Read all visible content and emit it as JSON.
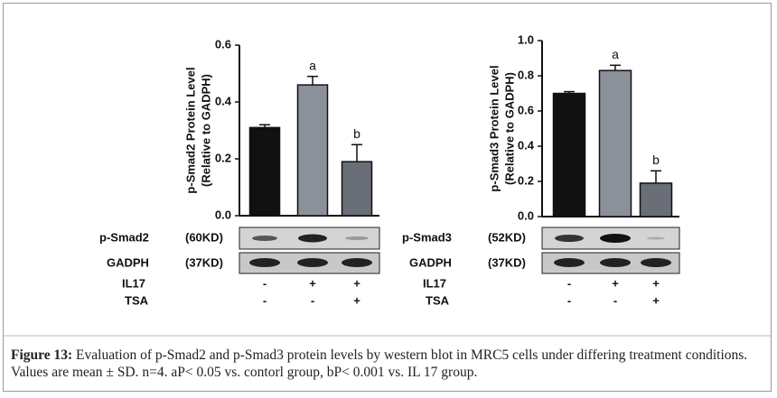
{
  "chart_data": [
    {
      "type": "bar",
      "ylabel": [
        "p-Smad2 Protein Level",
        "(Relative to GADPH)"
      ],
      "values": [
        0.31,
        0.46,
        0.19
      ],
      "errors": [
        0.01,
        0.03,
        0.06
      ],
      "colors": [
        "#111111",
        "#8c9099",
        "#6a6e77"
      ],
      "bar_labels": [
        null,
        "a",
        "b"
      ],
      "ylim": [
        0,
        0.6
      ],
      "yticks": [
        {
          "value": 0,
          "label": "0.0"
        },
        0.2,
        0.4,
        0.6
      ]
    },
    {
      "type": "bar",
      "ylabel": [
        "p-Smad3 Protein Level",
        "(Relative to GADPH)"
      ],
      "values": [
        0.7,
        0.83,
        0.19
      ],
      "errors": [
        0.01,
        0.03,
        0.07
      ],
      "colors": [
        "#111111",
        "#8c9099",
        "#6a6e77"
      ],
      "bar_labels": [
        null,
        "a",
        "b"
      ],
      "ylim": [
        0,
        1
      ],
      "yticks": [
        {
          "value": 0,
          "label": "0.0"
        },
        0.2,
        0.4,
        0.6,
        0.8,
        {
          "value": 1,
          "label": "1.0"
        }
      ]
    }
  ],
  "blots": [
    {
      "target": "p-Smad2",
      "target_size": "(60KD)",
      "control": "GADPH",
      "control_size": "(37KD)"
    },
    {
      "target": "p-Smad3",
      "target_size": "(52KD)",
      "control": "GADPH",
      "control_size": "(37KD)"
    }
  ],
  "treatments": [
    {
      "name": "IL17",
      "signs": [
        "-",
        "+",
        "+"
      ]
    },
    {
      "name": "TSA",
      "signs": [
        "-",
        "-",
        "+"
      ]
    }
  ],
  "caption": {
    "label": "Figure 13:",
    "text": "Evaluation of p-Smad2 and p-Smad3 protein levels by western blot in MRC5 cells under differing treatment conditions. Values are mean ± SD. n=4. aP< 0.05 vs. contorl group, bP< 0.001 vs. IL 17 group."
  }
}
